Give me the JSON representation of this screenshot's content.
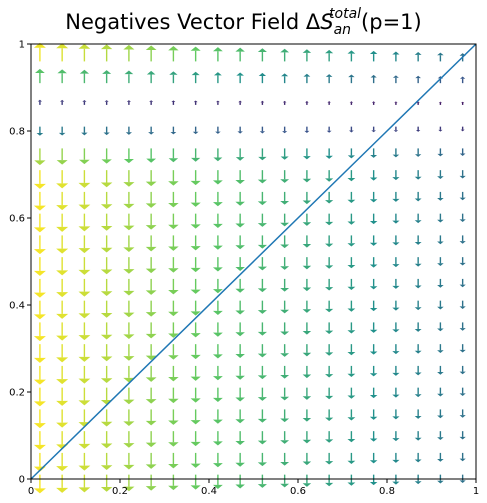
{
  "chart_data": {
    "type": "quiver",
    "title": {
      "text": "Negatives Vector Field Δ",
      "symbol": "S",
      "superscript": "total",
      "subscript": "an",
      "suffix": "(p=1)"
    },
    "xlim": [
      0,
      1
    ],
    "ylim": [
      0,
      1
    ],
    "x_ticks": [
      {
        "value": 0,
        "label": "0"
      },
      {
        "value": 0.2,
        "label": "0.2"
      },
      {
        "value": 0.4,
        "label": "0.4"
      },
      {
        "value": 0.6,
        "label": "0.6"
      },
      {
        "value": 0.8,
        "label": "0.8"
      },
      {
        "value": 1,
        "label": "1"
      }
    ],
    "y_ticks": [
      {
        "value": 0,
        "label": "0"
      },
      {
        "value": 0.2,
        "label": "0.2"
      },
      {
        "value": 0.4,
        "label": "0.4"
      },
      {
        "value": 0.6,
        "label": "0.6"
      },
      {
        "value": 0.8,
        "label": "0.8"
      },
      {
        "value": 1,
        "label": "1"
      }
    ],
    "grid": false,
    "colormap": "viridis",
    "arrow_grid": {
      "x_start": 0.02,
      "x_step": 0.05,
      "x_count": 20,
      "y_start": 0.01,
      "y_step": 0.05,
      "y_count": 20
    },
    "reference_line": {
      "x": [
        0,
        1
      ],
      "y": [
        0,
        1
      ],
      "color": "#1f77b4"
    }
  }
}
